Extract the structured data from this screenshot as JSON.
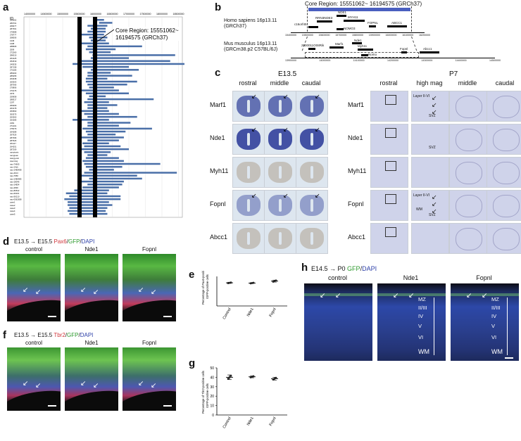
{
  "panels": {
    "a": {
      "label": "a"
    },
    "b": {
      "label": "b"
    },
    "c": {
      "label": "c"
    },
    "d": {
      "label": "d"
    },
    "e": {
      "label": "e"
    },
    "f": {
      "label": "f"
    },
    "g": {
      "label": "g"
    },
    "h": {
      "label": "h"
    }
  },
  "panel_a": {
    "id_header": "ID",
    "axis_ticks": [
      "14000000",
      "14500000",
      "15000000",
      "15500000",
      "16000000",
      "16500000",
      "17000000",
      "17500000",
      "18000000",
      "18500000"
    ],
    "callout_line1": "Core Region: 15551062~",
    "callout_line2": "16194575 (GRCh37)",
    "row_ids": [
      "250562",
      "280701",
      "268477",
      "287361",
      "275988",
      "278777",
      "268006",
      "1345",
      "1408",
      "288505",
      "2509",
      "272260",
      "286010",
      "264125",
      "251819",
      "249335",
      "287158",
      "270185",
      "286403",
      "285455",
      "264038",
      "263003",
      "287066",
      "270806",
      "270176",
      "2379",
      "259958",
      "288317",
      "1297",
      "256309",
      "263178",
      "253560",
      "300375",
      "264260",
      "253285",
      "2181",
      "271201",
      "275079",
      "264288",
      "267626",
      "287396",
      "287926",
      "261117",
      "264251",
      "287209",
      "nanyiweis",
      "nanyijuan",
      "wangyuxin",
      "xiaoming",
      "nau-74605",
      "nau-14eh",
      "nau-1485458",
      "nau-40c4",
      "nau-7950",
      "nau-1485485",
      "nau-18046",
      "nau-14834",
      "nau-2830",
      "nau-80542",
      "nau-69101",
      "nau-56210",
      "nau-0562658",
      "case1",
      "case2",
      "case3",
      "case4",
      "case5"
    ]
  },
  "panel_b": {
    "core_region": "Core Region: 15551062~ 16194575 (GRCh37)",
    "human_line1": "Homo sapiens 16p13.11",
    "human_line2": "(GRCh37)",
    "mouse_line1": "Mus musculus 16p13.11",
    "mouse_line2": "(GRCm38.p2 C57BL/6J)",
    "human_genes": [
      "NDE1",
      "RRN3NDE3",
      "MYH11",
      "FOPNL",
      "ABCC1",
      "c16orf45",
      "NOMO3"
    ],
    "mouse_genes": [
      "Marf1",
      "Nde1",
      "Myh11",
      "Fopnl",
      "Abcc1",
      "2900011O08Rik",
      "Nomo"
    ],
    "human_ticks": [
      "15400000",
      "15500000",
      "15600000",
      "15700000",
      "15800000",
      "15900000",
      "16000000",
      "16100000",
      "16200000"
    ],
    "mouse_ticks": [
      "13900000",
      "14000000",
      "14100000",
      "14200000",
      "14300000",
      "14400000",
      "14500000"
    ]
  },
  "panel_c": {
    "e135_title": "E13.5",
    "p7_title": "P7",
    "e135_cols": [
      "rostral",
      "middle",
      "caudal"
    ],
    "p7_cols": [
      "rostral",
      "high mag",
      "middle",
      "caudal"
    ],
    "genes": [
      "Marf1",
      "Nde1",
      "Myh11",
      "Fopnl",
      "Abcc1"
    ],
    "layer_label": "Layer II-VI",
    "svz_label": "SVZ",
    "wm_label": "WM"
  },
  "panel_d": {
    "timeline": "E13.5 → E15.5",
    "stain_red": "Pax6",
    "stain_green": "GFP",
    "stain_blue": "DAPI",
    "cols": [
      "control",
      "Nde1",
      "Fopnl"
    ]
  },
  "panel_e": {
    "ylabel_line1": "Percentage of Pax6-positive cells",
    "ylabel_line2": "/GFP-positive cells",
    "categories": [
      "Control",
      "Nde1",
      "Fopnl"
    ]
  },
  "panel_f": {
    "timeline": "E13.5 → E15.5",
    "stain_red": "Tbr2",
    "stain_green": "GFP",
    "stain_blue": "DAPI",
    "cols": [
      "control",
      "Nde1",
      "Fopnl"
    ]
  },
  "panel_g": {
    "ylabel_line1": "Percentage of Tbr2-positive cells",
    "ylabel_line2": "/GFP-positive cells",
    "categories": [
      "Control",
      "Nde1",
      "Fopnl"
    ],
    "yticks": [
      "0",
      "10",
      "20",
      "30",
      "40",
      "50"
    ]
  },
  "panel_h": {
    "timeline": "E14.5 → P0",
    "stain_green": "GFP",
    "stain_blue": "DAPI",
    "cols": [
      "control",
      "Nde1",
      "Fopnl"
    ],
    "layers": [
      "MZ",
      "II/III",
      "IV",
      "V",
      "VI",
      "WM"
    ]
  },
  "chart_data": [
    {
      "type": "scatter",
      "panel": "e",
      "categories": [
        "Control",
        "Nde1",
        "Fopnl"
      ],
      "values": [
        47,
        46.5,
        50.5
      ],
      "errors": [
        1.2,
        1.0,
        2.0
      ],
      "ylim": [
        0,
        60
      ],
      "ylabel": "Percentage of Pax6-positive cells /GFP-positive cells"
    },
    {
      "type": "scatter",
      "panel": "g",
      "categories": [
        "Control",
        "Nde1",
        "Fopnl"
      ],
      "values": [
        40,
        40.5,
        38.5
      ],
      "errors": [
        2.5,
        1.0,
        1.5
      ],
      "ylim": [
        0,
        50
      ],
      "ylabel": "Percentage of Tbr2-positive cells /GFP-positive cells"
    }
  ],
  "colors": {
    "cnv_bar": "#4a6fa8",
    "core_band": "#000000",
    "core_bar_b": "#4a5fc0",
    "ish_stain": "#3b4aa0"
  }
}
